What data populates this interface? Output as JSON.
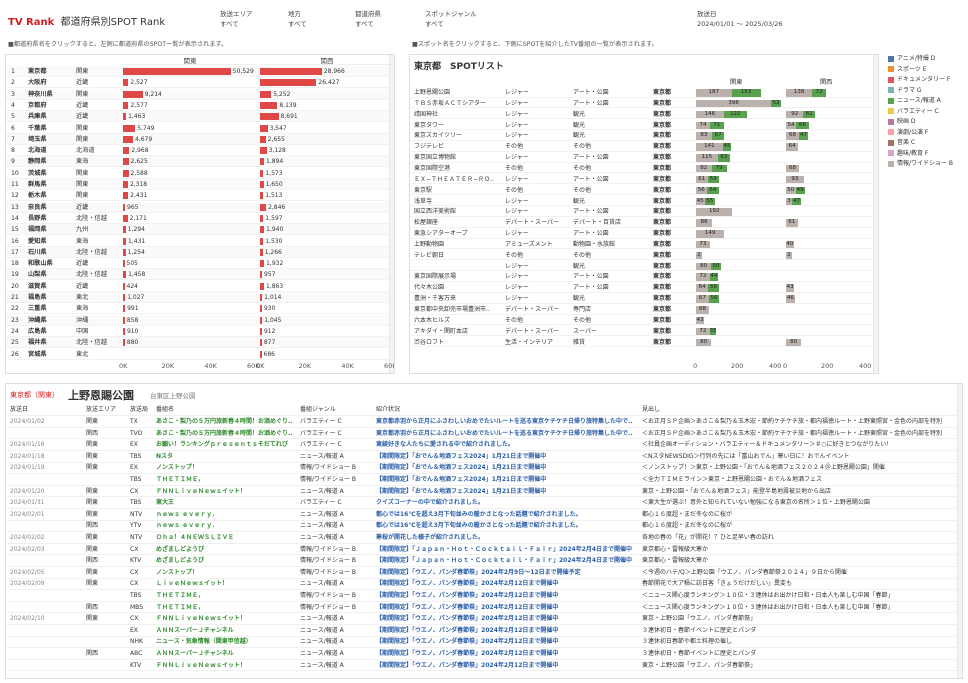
{
  "header": {
    "brand": "TV Rank",
    "title": "都道府県別SPOT Rank"
  },
  "filters": [
    {
      "label": "放送エリア",
      "value": "すべて"
    },
    {
      "label": "地方",
      "value": "すべて"
    },
    {
      "label": "都道府県",
      "value": "すべて"
    },
    {
      "label": "スポットジャンル",
      "value": "すべて"
    },
    {
      "label": "放送日",
      "value": "2024/01/01 〜 2025/03/26"
    }
  ],
  "notes": {
    "left": "■都道府県名をクリックすると、左側に都道府県のSPOT一覧が表示されます。",
    "right": "■スポット名をクリックすると、下側にSPOTを紹介したTV番組の一覧が表示されます。"
  },
  "rank": {
    "col_kanto": "関東",
    "col_kansai": "関西",
    "axis": [
      "0K",
      "20K",
      "40K",
      "60K"
    ],
    "rows": [
      [
        "1",
        "東京都",
        "関東",
        "50,529",
        "28,966",
        50529,
        28966
      ],
      [
        "2",
        "大阪府",
        "近畿",
        "2,527",
        "26,427",
        2527,
        26427
      ],
      [
        "3",
        "神奈川県",
        "関東",
        "9,214",
        "5,252",
        9214,
        5252
      ],
      [
        "4",
        "京都府",
        "近畿",
        "2,577",
        "8,139",
        2577,
        8139
      ],
      [
        "5",
        "兵庫県",
        "近畿",
        "1,463",
        "8,691",
        1463,
        8691
      ],
      [
        "6",
        "千葉県",
        "関東",
        "5,749",
        "3,547",
        5749,
        3547
      ],
      [
        "7",
        "埼玉県",
        "関東",
        "4,679",
        "2,655",
        4679,
        2655
      ],
      [
        "8",
        "北海道",
        "北海道",
        "2,968",
        "3,128",
        2968,
        3128
      ],
      [
        "9",
        "静岡県",
        "東海",
        "2,625",
        "1,894",
        2625,
        1894
      ],
      [
        "10",
        "茨城県",
        "関東",
        "2,588",
        "1,573",
        2588,
        1573
      ],
      [
        "11",
        "群馬県",
        "関東",
        "2,318",
        "1,650",
        2318,
        1650
      ],
      [
        "12",
        "栃木県",
        "関東",
        "2,431",
        "1,513",
        2431,
        1513
      ],
      [
        "13",
        "奈良県",
        "近畿",
        "965",
        "2,846",
        965,
        2846
      ],
      [
        "14",
        "長野県",
        "北陸・信越",
        "2,171",
        "1,597",
        2171,
        1597
      ],
      [
        "15",
        "福岡県",
        "九州",
        "1,294",
        "1,940",
        1294,
        1940
      ],
      [
        "16",
        "愛知県",
        "東海",
        "1,431",
        "1,530",
        1431,
        1530
      ],
      [
        "17",
        "石川県",
        "北陸・信越",
        "1,254",
        "1,266",
        1254,
        1266
      ],
      [
        "18",
        "和歌山県",
        "近畿",
        "505",
        "1,932",
        505,
        1932
      ],
      [
        "19",
        "山梨県",
        "北陸・信越",
        "1,458",
        "957",
        1458,
        957
      ],
      [
        "20",
        "滋賀県",
        "近畿",
        "424",
        "1,863",
        424,
        1863
      ],
      [
        "21",
        "福島県",
        "東北",
        "1,027",
        "1,014",
        1027,
        1014
      ],
      [
        "22",
        "三重県",
        "東海",
        "991",
        "930",
        991,
        930
      ],
      [
        "23",
        "沖縄県",
        "沖縄",
        "858",
        "1,045",
        858,
        1045
      ],
      [
        "24",
        "広島県",
        "中国",
        "910",
        "912",
        910,
        912
      ],
      [
        "25",
        "福井県",
        "北陸・信越",
        "880",
        "877",
        880,
        877
      ],
      [
        "26",
        "宮城県",
        "東北",
        "",
        "686",
        0,
        686
      ]
    ]
  },
  "spot": {
    "title": "東京都　SPOTリスト",
    "col_kanto": "関東",
    "col_kansai": "関西",
    "axis": [
      "0",
      "200",
      "400"
    ],
    "rows": [
      [
        "上野恩賜公園",
        "レジャー",
        "アート・公園",
        "東京都",
        "187",
        "153",
        "138",
        "72"
      ],
      [
        "ＴＢＳ赤坂ＡＣＴシアター",
        "レジャー",
        "アート・公園",
        "東京都",
        "396",
        "52",
        "",
        ""
      ],
      [
        "靖国神社",
        "レジャー",
        "観光",
        "東京都",
        "146",
        "122",
        "92",
        "61"
      ],
      [
        "東京タワー",
        "レジャー",
        "観光",
        "東京都",
        "74",
        "71",
        "54",
        "66"
      ],
      [
        "東京スカイツリー",
        "レジャー",
        "観光",
        "東京都",
        "83",
        "67",
        "68",
        "47"
      ],
      [
        "フジテレビ",
        "その他",
        "その他",
        "東京都",
        "141",
        "45",
        "64",
        ""
      ],
      [
        "東京国立博物館",
        "レジャー",
        "アート・公園",
        "東京都",
        "115",
        "63",
        "",
        ""
      ],
      [
        "東京国際空港",
        "その他",
        "その他",
        "東京都",
        "82",
        "79",
        "68",
        ""
      ],
      [
        "ＥＸ−ＴＨＥＡＴＥＲ−ＲＯ..",
        "レジャー",
        "アート・公園",
        "東京都",
        "61",
        "59",
        "93",
        ""
      ],
      [
        "東京駅",
        "その他",
        "その他",
        "東京都",
        "56",
        "64",
        "50",
        "49"
      ],
      [
        "浅草寺",
        "レジャー",
        "観光",
        "東京都",
        "45",
        "55",
        "3",
        "47"
      ],
      [
        "国立西洋美術館",
        "レジャー",
        "アート・公園",
        "東京都",
        "192",
        "",
        "",
        ""
      ],
      [
        "松屋銀座",
        "デパート・スーパー",
        "デパート・百貨店",
        "東京都",
        "86",
        "",
        "61",
        ""
      ],
      [
        "東急シアターオーブ",
        "レジャー",
        "アート・公園",
        "東京都",
        "149",
        "",
        "",
        ""
      ],
      [
        "上野動物園",
        "アミューズメント",
        "動物園・水族館",
        "東京都",
        "73",
        "",
        "40",
        ""
      ],
      [
        "テレビ朝日",
        "その他",
        "その他",
        "東京都",
        "2",
        "",
        "2",
        ""
      ],
      [
        "",
        "レジャー",
        "観光",
        "東京都",
        "80",
        "50",
        "",
        ""
      ],
      [
        "東京国際展示場",
        "レジャー",
        "アート・公園",
        "東京都",
        "72",
        "44",
        "",
        ""
      ],
      [
        "代々木公園",
        "レジャー",
        "アート・公園",
        "東京都",
        "64",
        "56",
        "43",
        ""
      ],
      [
        "豊洲・千客万来",
        "レジャー",
        "観光",
        "東京都",
        "67",
        "56",
        "46",
        ""
      ],
      [
        "東京都中央卸売市場豊洲市..",
        "デパート・スーパー",
        "専門店",
        "東京都",
        "68",
        "",
        "",
        ""
      ],
      [
        "六本木ヒルズ",
        "その他",
        "その他",
        "東京都",
        "43",
        "",
        "",
        ""
      ],
      [
        "アキダイ・関町本店",
        "デパート・スーパー",
        "スーパー",
        "東京都",
        "72",
        "35",
        "",
        ""
      ],
      [
        "渋谷ロフト",
        "生活・インテリア",
        "雑貨",
        "東京都",
        "80",
        "",
        "80",
        ""
      ]
    ]
  },
  "legend": [
    {
      "label": "アニメ/特撮 D",
      "color": "#4e79a7"
    },
    {
      "label": "スポーツ E",
      "color": "#f28e2b"
    },
    {
      "label": "ドキュメンタリー F",
      "color": "#e15759"
    },
    {
      "label": "ドラマ G",
      "color": "#76b7b2"
    },
    {
      "label": "ニュース/報道 A",
      "color": "#59a14f"
    },
    {
      "label": "バラエティー C",
      "color": "#edc948"
    },
    {
      "label": "映画 D",
      "color": "#b07aa1"
    },
    {
      "label": "演劇/公演 F",
      "color": "#ff9da7"
    },
    {
      "label": "音楽 C",
      "color": "#9c755f"
    },
    {
      "label": "趣味/教育 F",
      "color": "#d4a6c8"
    },
    {
      "label": "情報/ワイドショー B",
      "color": "#bab0ac"
    }
  ],
  "detail": {
    "region": "東京都（関東）",
    "spot_name": "上野恩賜公園",
    "address": "台東区上野公園",
    "headers": [
      "放送日",
      "放送エリア",
      "放送局",
      "番組名",
      "番組ジャンル",
      "紹介状況",
      "見出し"
    ],
    "rows": [
      [
        "2024/01/02",
        "関東",
        "TX",
        "あさこ・梨乃の５万円旅新春４時間！お酒めぐり..",
        "バラエティー C",
        "東京都赤羽から正月にふさわしいおめでたいルートを巡る東京ケチケチ日帰り旅特集した中で..",
        "＜お正月ＳＰ企画＞あさこ＆梨乃＆玉木宏・節約ケチケチ旅・都内福徳ルート・上野東照宮・金色の内部を特別"
      ],
      [
        "",
        "関西",
        "TVO",
        "あさこ・梨乃の５万円旅新春４時間！お酒めぐり..",
        "バラエティー C",
        "東京都赤羽から正月にふさわしいおめでたいルートを巡る東京ケチケチ日帰り旅特集した中で..",
        "＜お正月ＳＰ企画＞あさこ＆梨乃＆玉木宏・節約ケチケチ旅・都内福徳ルート・上野東照宮・金色の内部を特別"
      ],
      [
        "2024/01/16",
        "関東",
        "EX",
        "お願い！ランキングｐｒｅｓｅｎｔｓそだてれび",
        "バラエティー C",
        "東綾好きな人たちに愛される中で紹介されました。",
        "＜社員企画オーディション・バラエティー＆ドキュメンタリー＞＃○に好きとつながりたい！"
      ],
      [
        "2024/01/18",
        "関東",
        "TBS",
        "Nスタ",
        "ニュース/報道 A",
        "【期間限定】「おでん＆地酒フェス2024」1月21日まで開催中",
        "＜NスタNEWSDIG＞行列の先には「富山おでん」寒い日に！おでんイベント"
      ],
      [
        "2024/01/19",
        "関東",
        "EX",
        "ノンストップ！",
        "情報/ワイドショー B",
        "【期間限定】「おでん＆地酒フェス2024」1月21日まで開催中",
        "＜ノンストップ！＞東京・上野公園・「おでん＆地酒フェス２０２４＠上野恩賜公園」開催"
      ],
      [
        "",
        "",
        "TBS",
        "ＴＨＥＴＩＭＥ，",
        "情報/ワイドショー B",
        "【期間限定】「おでん＆地酒フェス2024」1月21日まで開催中",
        "＜全力ＴＩＭＥライン＞東京・上野恩賜公園・おでん＆地酒フェス"
      ],
      [
        "2024/01/20",
        "関東",
        "CX",
        "ＦＮＮＬｉｖｅＮｅｗｓイット！",
        "ニュース/報道 A",
        "【期間限定】「おでん＆地酒フェス2024」1月21日まで開催中",
        "東京・上野公園・「おでん＆地酒フェス」能登半島地震被災地から出店"
      ],
      [
        "2024/01/31",
        "関東",
        "TBS",
        "東大王",
        "バラエティー C",
        "クイズコーナーの中で紹介されました。",
        "＜東大生が選ぶ！意外と知られていない勉強になる東京の名所＞１位・上野恩賜公園"
      ],
      [
        "2024/02/01",
        "関東",
        "NTV",
        "ｎｅｗｓ ｅｖｅｒｙ．",
        "ニュース/報道 A",
        "都心では16℃を超え3月下旬並みの暖かさとなった話題で紹介されました。",
        "都心１６度超・まだ冬なのに桜が"
      ],
      [
        "",
        "関西",
        "YTV",
        "ｎｅｗｓ ｅｖｅｒｙ．",
        "ニュース/報道 A",
        "都心では16℃を超え3月下旬並みの暖かさとなった話題で紹介されました。",
        "都心１６度超・まだ冬なのに桜が"
      ],
      [
        "2024/02/02",
        "関東",
        "NTV",
        "Ｏｈａ！４ＮＥＷＳＬＩＶＥ",
        "ニュース/報道 A",
        "寒桜が開花した様子が紹介されました。",
        "各地の春の「花」が開花！？ひと足早い春の訪れ"
      ],
      [
        "2024/02/03",
        "関東",
        "CX",
        "めざましどようび",
        "情報/ワイドショー B",
        "【期間限定】「Ｊａｐａｎ・Ｈｏｔ・Ｃｏｃｋｔａｉｌ・Ｆａｉｒ」2024年2月4日まで開催中",
        "東京都心・雷報級大寒か"
      ],
      [
        "",
        "関西",
        "KTV",
        "めざましどようび",
        "情報/ワイドショー B",
        "【期間限定】「Ｊａｐａｎ・Ｈｏｔ・Ｃｏｃｋｔａｉｌ・Ｆａｉｒ」2024年2月4日まで開催中",
        "東京都心・雷報級大寒か"
      ],
      [
        "2024/02/05",
        "関東",
        "CX",
        "ノンストップ！",
        "情報/ワイドショー B",
        "【期間限定】「ウエノ、パンダ春節祭」2024年2月9日〜12日まで開催予定",
        "＜今週のハテ/Q＞上野公園「ウエノ、パンダ春節祭２０２４」９日から開催"
      ],
      [
        "2024/02/09",
        "関東",
        "CX",
        "ＬｉｖｅＮｅｗｓイット！",
        "ニュース/報道 A",
        "【期間限定】「ウエノ、パンダ春節祭」2024年2月12日まで開催中",
        "春節開花で大ア積に訪日客「きょうだけだしい」異変も"
      ],
      [
        "",
        "",
        "TBS",
        "ＴＨＥＴＩＭＥ，",
        "情報/ワイドショー B",
        "【期間限定】「ウエノ、パンダ春節祭」2024年2月12日まで開催中",
        "＜ニュース関心度ランキング＞１０位・３連休はお出かけ日和・日本人も楽しむ中国「春節」"
      ],
      [
        "",
        "関西",
        "MBS",
        "ＴＨＥＴＩＭＥ，",
        "情報/ワイドショー B",
        "【期間限定】「ウエノ、パンダ春節祭」2024年2月12日まで開催中",
        "＜ニュース関心度ランキング＞１０位・３連休はお出かけ日和・日本人も楽しむ中国「春節」"
      ],
      [
        "2024/02/10",
        "関東",
        "CX",
        "ＦＮＮＬｉｖｅＮｅｗｓイット！",
        "ニュース/報道 A",
        "【期間限定】「ウエノ、パンダ春節祭」2024年2月12日まで開催中",
        "東京・上野公園「ウエノ、パンダ春節祭」"
      ],
      [
        "",
        "",
        "EX",
        "ＡＮＮスーパーＪチャンネル",
        "ニュース/報道 A",
        "【期間限定】「ウエノ、パンダ春節祭」2024年2月12日まで開催中",
        "３連休初日・春節イベントに歴史とパンダ"
      ],
      [
        "",
        "",
        "NHK",
        "ニュース・気象情報（関東甲信越）",
        "ニュース/報道 A",
        "【期間限定】「ウエノ、パンダ春節祭」2024年2月12日まで開催中",
        "３連休初日春節や都土料理の催し"
      ],
      [
        "",
        "関西",
        "ABC",
        "ＡＮＮスーパーＪチャンネル",
        "ニュース/報道 A",
        "【期間限定】「ウエノ、パンダ春節祭」2024年2月12日まで開催中",
        "３連休初日・春節イベントに歴史とパンダ"
      ],
      [
        "",
        "",
        "KTV",
        "ＦＮＮＬｉｖｅＮｅｗｓイット！",
        "ニュース/報道 A",
        "【期間限定】「ウエノ、パンダ春節祭」2024年2月12日まで開催中",
        "東京・上野公園「ウエノ、パンダ春節祭」"
      ]
    ]
  }
}
